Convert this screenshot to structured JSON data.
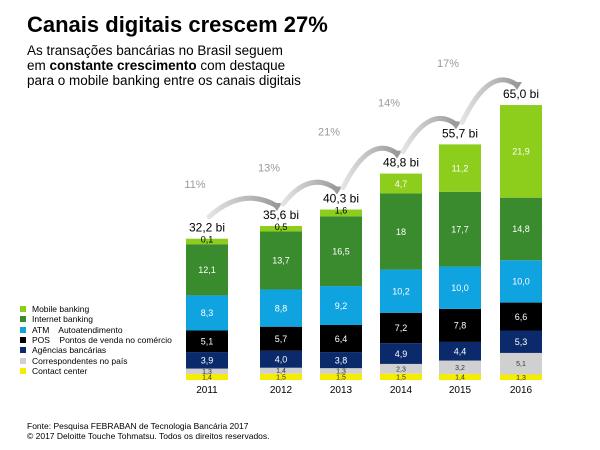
{
  "header": {
    "title": "Canais digitais crescem 27%",
    "subtitle_line1": "As transações bancárias no Brasil seguem",
    "subtitle_line2_pre": "em ",
    "subtitle_line2_bold": "constante crescimento",
    "subtitle_line2_post": " com destaque",
    "subtitle_line3": "para o mobile banking entre os canais digitais"
  },
  "footer": {
    "source": "Fonte: Pesquisa FEBRABAN de Tecnologia Bancária 2017",
    "copyright": "© 2017 Deloitte Touche Tohmatsu. Todos os direitos reservados."
  },
  "chart_data": {
    "type": "bar",
    "stacked": true,
    "categories": [
      "2011",
      "2012",
      "2013",
      "2014",
      "2015",
      "2016"
    ],
    "totals": [
      "32,2 bi",
      "35,6 bi",
      "40,3 bi",
      "48,8 bi",
      "55,7 bi",
      "65,0 bi"
    ],
    "growth": [
      "11%",
      "13%",
      "21%",
      "14%",
      "17%"
    ],
    "series": [
      {
        "name": "Contact center",
        "color": "#f5ec00",
        "values": [
          1.4,
          1.5,
          1.5,
          1.5,
          1.4,
          1.3
        ],
        "labels": [
          "1,4",
          "1,5",
          "1,5",
          "1,5",
          "1,4",
          "1,3"
        ]
      },
      {
        "name": "Correspondentes no país",
        "color": "#d0d0d0",
        "values": [
          1.3,
          1.4,
          1.3,
          2.3,
          3.2,
          5.1
        ],
        "labels": [
          "1,3",
          "1,4",
          "1,3",
          "2,3",
          "3,2",
          "5,1"
        ]
      },
      {
        "name": "Agências bancárias",
        "color": "#0b2a6b",
        "values": [
          3.9,
          4.0,
          3.8,
          4.9,
          4.4,
          5.3
        ],
        "labels": [
          "3,9",
          "4,0",
          "3,8",
          "4,9",
          "4,4",
          "5,3"
        ]
      },
      {
        "name": "POS    Pontos de venda no comércio",
        "color": "#000000",
        "values": [
          5.1,
          5.7,
          6.4,
          7.2,
          7.8,
          6.6
        ],
        "labels": [
          "5,1",
          "5,7",
          "6,4",
          "7,2",
          "7,8",
          "6,6"
        ]
      },
      {
        "name": "ATM    Autoatendimento",
        "color": "#0fa4e0",
        "values": [
          8.3,
          8.8,
          9.2,
          10.2,
          10.0,
          10.0
        ],
        "labels": [
          "8,3",
          "8,8",
          "9,2",
          "10,2",
          "10,0",
          "10,0"
        ]
      },
      {
        "name": "Internet banking",
        "color": "#3a8a2e",
        "values": [
          12.1,
          13.7,
          16.5,
          18.0,
          17.7,
          14.8
        ],
        "labels": [
          "12,1",
          "13,7",
          "16,5",
          "18",
          "17,7",
          "14,8"
        ]
      },
      {
        "name": "Mobile banking",
        "color": "#8dcd1c",
        "values": [
          0.1,
          0.5,
          1.6,
          4.7,
          11.2,
          21.9
        ],
        "labels": [
          "0,1",
          "0,5",
          "1,6",
          "4,7",
          "11,2",
          "21,9"
        ]
      }
    ],
    "legend_order": [
      "Mobile banking",
      "Internet banking",
      "ATM    Autoatendimento",
      "POS    Pontos de venda no comércio",
      "Agências bancárias",
      "Correspondentes no país",
      "Contact center"
    ]
  }
}
